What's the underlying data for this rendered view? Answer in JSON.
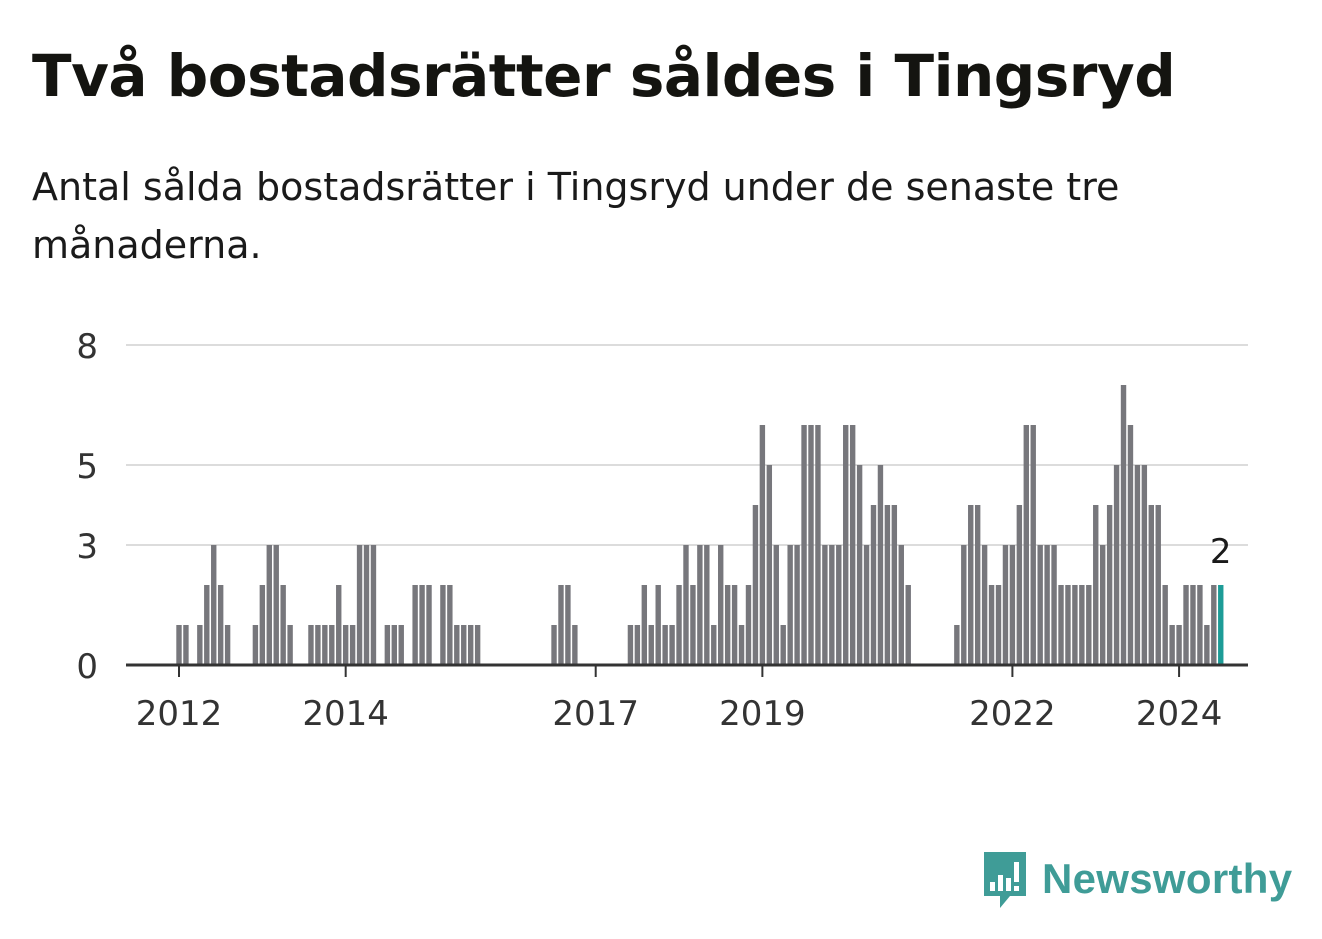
{
  "header": {
    "title": "Två bostadsrätter såldes i Tingsryd",
    "subtitle": "Antal sålda bostadsrätter i Tingsryd under de senaste tre månaderna."
  },
  "brand": {
    "name": "Newsworthy",
    "color": "#3f9c97",
    "icon": "newsworthy-chat-bar-icon"
  },
  "colors": {
    "bar": "#77777c",
    "highlight": "#1d9c97",
    "grid": "#dcdcdc",
    "axis": "#333333"
  },
  "chart_data": {
    "type": "bar",
    "title": "Två bostadsrätter såldes i Tingsryd",
    "xlabel": "",
    "ylabel": "",
    "ylim": [
      0,
      8
    ],
    "yticks": [
      0,
      3,
      5,
      8
    ],
    "y_tick_labels": [
      "0",
      "3",
      "5",
      "8"
    ],
    "grid": true,
    "x_start": "2011-12",
    "x_end": "2024-04",
    "x_tick_labels": [
      {
        "label": "2012",
        "date": "2012-01"
      },
      {
        "label": "2014",
        "date": "2014-01"
      },
      {
        "label": "2017",
        "date": "2017-01"
      },
      {
        "label": "2019",
        "date": "2019-01"
      },
      {
        "label": "2022",
        "date": "2022-01"
      },
      {
        "label": "2024",
        "date": "2024-01"
      }
    ],
    "bars": [
      [
        "2012-01",
        1
      ],
      [
        "2012-02",
        1
      ],
      [
        "2012-04",
        1
      ],
      [
        "2012-05",
        2
      ],
      [
        "2012-06",
        3
      ],
      [
        "2012-07",
        2
      ],
      [
        "2012-08",
        1
      ],
      [
        "2012-12",
        1
      ],
      [
        "2013-01",
        2
      ],
      [
        "2013-02",
        3
      ],
      [
        "2013-03",
        3
      ],
      [
        "2013-04",
        2
      ],
      [
        "2013-05",
        1
      ],
      [
        "2013-08",
        1
      ],
      [
        "2013-09",
        1
      ],
      [
        "2013-10",
        1
      ],
      [
        "2013-11",
        1
      ],
      [
        "2013-12",
        2
      ],
      [
        "2014-01",
        1
      ],
      [
        "2014-02",
        1
      ],
      [
        "2014-03",
        3
      ],
      [
        "2014-04",
        3
      ],
      [
        "2014-05",
        3
      ],
      [
        "2014-07",
        1
      ],
      [
        "2014-08",
        1
      ],
      [
        "2014-09",
        1
      ],
      [
        "2014-11",
        2
      ],
      [
        "2014-12",
        2
      ],
      [
        "2015-01",
        2
      ],
      [
        "2015-03",
        2
      ],
      [
        "2015-04",
        2
      ],
      [
        "2015-05",
        1
      ],
      [
        "2015-06",
        1
      ],
      [
        "2015-07",
        1
      ],
      [
        "2015-08",
        1
      ],
      [
        "2016-07",
        1
      ],
      [
        "2016-08",
        2
      ],
      [
        "2016-09",
        2
      ],
      [
        "2016-10",
        1
      ],
      [
        "2017-06",
        1
      ],
      [
        "2017-07",
        1
      ],
      [
        "2017-08",
        2
      ],
      [
        "2017-09",
        1
      ],
      [
        "2017-10",
        2
      ],
      [
        "2017-11",
        1
      ],
      [
        "2017-12",
        1
      ],
      [
        "2018-01",
        2
      ],
      [
        "2018-02",
        3
      ],
      [
        "2018-03",
        2
      ],
      [
        "2018-04",
        3
      ],
      [
        "2018-05",
        3
      ],
      [
        "2018-06",
        1
      ],
      [
        "2018-07",
        3
      ],
      [
        "2018-08",
        2
      ],
      [
        "2018-09",
        2
      ],
      [
        "2018-10",
        1
      ],
      [
        "2018-11",
        2
      ],
      [
        "2018-12",
        4
      ],
      [
        "2019-01",
        6
      ],
      [
        "2019-02",
        5
      ],
      [
        "2019-03",
        3
      ],
      [
        "2019-04",
        1
      ],
      [
        "2019-05",
        3
      ],
      [
        "2019-06",
        3
      ],
      [
        "2019-07",
        6
      ],
      [
        "2019-08",
        6
      ],
      [
        "2019-09",
        6
      ],
      [
        "2019-10",
        3
      ],
      [
        "2019-11",
        3
      ],
      [
        "2019-12",
        3
      ],
      [
        "2020-01",
        6
      ],
      [
        "2020-02",
        6
      ],
      [
        "2020-03",
        5
      ],
      [
        "2020-04",
        3
      ],
      [
        "2020-05",
        4
      ],
      [
        "2020-06",
        5
      ],
      [
        "2020-07",
        4
      ],
      [
        "2020-08",
        4
      ],
      [
        "2020-09",
        3
      ],
      [
        "2020-10",
        2
      ],
      [
        "2021-05",
        1
      ],
      [
        "2021-06",
        3
      ],
      [
        "2021-07",
        4
      ],
      [
        "2021-08",
        4
      ],
      [
        "2021-09",
        3
      ],
      [
        "2021-10",
        2
      ],
      [
        "2021-11",
        2
      ],
      [
        "2021-12",
        3
      ],
      [
        "2022-01",
        3
      ],
      [
        "2022-02",
        4
      ],
      [
        "2022-03",
        6
      ],
      [
        "2022-04",
        6
      ],
      [
        "2022-05",
        3
      ],
      [
        "2022-06",
        3
      ],
      [
        "2022-07",
        3
      ],
      [
        "2022-08",
        2
      ],
      [
        "2022-09",
        2
      ],
      [
        "2022-10",
        2
      ],
      [
        "2022-11",
        2
      ],
      [
        "2022-12",
        2
      ],
      [
        "2023-01",
        4
      ],
      [
        "2023-02",
        3
      ],
      [
        "2023-03",
        4
      ],
      [
        "2023-04",
        5
      ],
      [
        "2023-05",
        7
      ],
      [
        "2023-06",
        6
      ],
      [
        "2023-07",
        5
      ],
      [
        "2023-08",
        5
      ],
      [
        "2023-09",
        4
      ],
      [
        "2023-10",
        4
      ],
      [
        "2023-11",
        2
      ],
      [
        "2023-12",
        1
      ],
      [
        "2024-01",
        1
      ],
      [
        "2024-02",
        2
      ],
      [
        "2024-03",
        2
      ],
      [
        "2024-04",
        2
      ],
      [
        "2024-05",
        1
      ],
      [
        "2024-06",
        2
      ],
      [
        "2024-07",
        2
      ]
    ],
    "highlight": {
      "date": "2024-07",
      "value": 2,
      "label": "2"
    }
  }
}
